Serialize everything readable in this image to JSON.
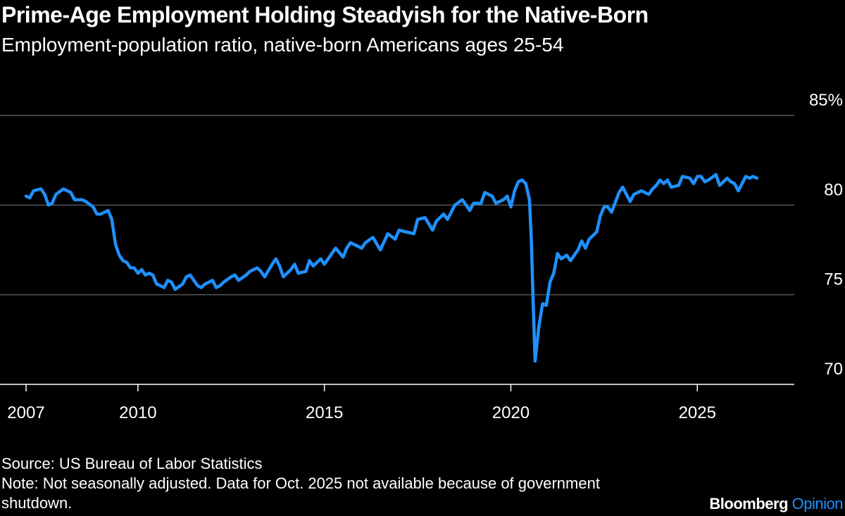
{
  "header": {
    "title": "Prime-Age Employment Holding Steadyish for the Native-Born",
    "subtitle": "Employment-population ratio, native-born Americans ages 25-54"
  },
  "footer": {
    "source": "Source: US Bureau of Labor Statistics",
    "note": "Note: Not seasonally adjusted. Data for Oct. 2025 not available because of government shutdown.",
    "brand_main": "Bloomberg",
    "brand_accent": "Opinion"
  },
  "colors": {
    "background": "#000000",
    "line": "#1e90ff",
    "grid": "#555555",
    "text": "#ffffff"
  },
  "chart_data": {
    "type": "line",
    "title": "Prime-Age Employment Holding Steadyish for the Native-Born",
    "subtitle": "Employment-population ratio, native-born Americans ages 25-54",
    "xlabel": "",
    "ylabel": "",
    "xlim": [
      2007.0,
      2026.6
    ],
    "ylim": [
      70,
      85
    ],
    "y_ticks": [
      70,
      75,
      80,
      85
    ],
    "y_tick_labels": [
      "70",
      "75",
      "80",
      "85%"
    ],
    "x_ticks": [
      2007,
      2010,
      2015,
      2020,
      2025
    ],
    "x_tick_labels": [
      "2007",
      "2010",
      "2015",
      "2020",
      "2025"
    ],
    "grid": true,
    "series": [
      {
        "name": "Employment-population ratio",
        "points": [
          [
            2007.0,
            80.5
          ],
          [
            2007.1,
            80.4
          ],
          [
            2007.2,
            80.8
          ],
          [
            2007.4,
            80.9
          ],
          [
            2007.5,
            80.6
          ],
          [
            2007.6,
            80.0
          ],
          [
            2007.7,
            80.1
          ],
          [
            2007.8,
            80.6
          ],
          [
            2008.0,
            80.9
          ],
          [
            2008.2,
            80.7
          ],
          [
            2008.3,
            80.3
          ],
          [
            2008.5,
            80.3
          ],
          [
            2008.6,
            80.2
          ],
          [
            2008.8,
            79.9
          ],
          [
            2008.9,
            79.5
          ],
          [
            2009.0,
            79.5
          ],
          [
            2009.2,
            79.7
          ],
          [
            2009.3,
            79.2
          ],
          [
            2009.4,
            77.8
          ],
          [
            2009.5,
            77.2
          ],
          [
            2009.6,
            76.9
          ],
          [
            2009.7,
            76.8
          ],
          [
            2009.8,
            76.5
          ],
          [
            2009.9,
            76.5
          ],
          [
            2010.0,
            76.2
          ],
          [
            2010.1,
            76.4
          ],
          [
            2010.2,
            76.1
          ],
          [
            2010.3,
            76.2
          ],
          [
            2010.4,
            76.1
          ],
          [
            2010.5,
            75.6
          ],
          [
            2010.6,
            75.5
          ],
          [
            2010.7,
            75.4
          ],
          [
            2010.8,
            75.8
          ],
          [
            2010.9,
            75.7
          ],
          [
            2011.0,
            75.3
          ],
          [
            2011.2,
            75.6
          ],
          [
            2011.3,
            76.0
          ],
          [
            2011.4,
            76.1
          ],
          [
            2011.5,
            75.8
          ],
          [
            2011.6,
            75.5
          ],
          [
            2011.7,
            75.4
          ],
          [
            2011.8,
            75.6
          ],
          [
            2012.0,
            75.8
          ],
          [
            2012.1,
            75.4
          ],
          [
            2012.2,
            75.5
          ],
          [
            2012.3,
            75.7
          ],
          [
            2012.5,
            76.0
          ],
          [
            2012.6,
            76.1
          ],
          [
            2012.7,
            75.8
          ],
          [
            2012.9,
            76.1
          ],
          [
            2013.0,
            76.3
          ],
          [
            2013.2,
            76.5
          ],
          [
            2013.3,
            76.3
          ],
          [
            2013.4,
            76.0
          ],
          [
            2013.6,
            76.7
          ],
          [
            2013.7,
            77.0
          ],
          [
            2013.8,
            76.6
          ],
          [
            2013.9,
            76.0
          ],
          [
            2014.1,
            76.4
          ],
          [
            2014.2,
            76.7
          ],
          [
            2014.3,
            76.2
          ],
          [
            2014.5,
            76.3
          ],
          [
            2014.6,
            76.9
          ],
          [
            2014.7,
            76.6
          ],
          [
            2014.9,
            77.0
          ],
          [
            2015.0,
            76.7
          ],
          [
            2015.2,
            77.3
          ],
          [
            2015.3,
            77.6
          ],
          [
            2015.5,
            77.1
          ],
          [
            2015.6,
            77.6
          ],
          [
            2015.7,
            77.9
          ],
          [
            2016.0,
            77.6
          ],
          [
            2016.1,
            77.9
          ],
          [
            2016.3,
            78.2
          ],
          [
            2016.5,
            77.5
          ],
          [
            2016.7,
            78.4
          ],
          [
            2016.9,
            78.1
          ],
          [
            2017.0,
            78.6
          ],
          [
            2017.2,
            78.5
          ],
          [
            2017.4,
            78.4
          ],
          [
            2017.5,
            79.2
          ],
          [
            2017.7,
            79.3
          ],
          [
            2017.9,
            78.6
          ],
          [
            2018.0,
            79.1
          ],
          [
            2018.2,
            79.5
          ],
          [
            2018.3,
            79.2
          ],
          [
            2018.5,
            80.0
          ],
          [
            2018.7,
            80.3
          ],
          [
            2018.9,
            79.7
          ],
          [
            2019.0,
            80.1
          ],
          [
            2019.2,
            80.1
          ],
          [
            2019.3,
            80.7
          ],
          [
            2019.5,
            80.5
          ],
          [
            2019.6,
            80.1
          ],
          [
            2019.8,
            80.3
          ],
          [
            2019.9,
            80.5
          ],
          [
            2020.0,
            79.9
          ],
          [
            2020.1,
            80.8
          ],
          [
            2020.2,
            81.3
          ],
          [
            2020.3,
            81.4
          ],
          [
            2020.4,
            81.2
          ],
          [
            2020.5,
            80.3
          ],
          [
            2020.55,
            78.0
          ],
          [
            2020.6,
            74.5
          ],
          [
            2020.65,
            71.3
          ],
          [
            2020.75,
            73.2
          ],
          [
            2020.85,
            74.5
          ],
          [
            2020.95,
            74.4
          ],
          [
            2021.05,
            75.7
          ],
          [
            2021.15,
            76.2
          ],
          [
            2021.25,
            77.3
          ],
          [
            2021.35,
            77.0
          ],
          [
            2021.5,
            77.2
          ],
          [
            2021.6,
            76.9
          ],
          [
            2021.8,
            77.5
          ],
          [
            2021.9,
            78.0
          ],
          [
            2022.0,
            77.6
          ],
          [
            2022.1,
            78.1
          ],
          [
            2022.3,
            78.5
          ],
          [
            2022.4,
            79.4
          ],
          [
            2022.5,
            79.9
          ],
          [
            2022.6,
            79.9
          ],
          [
            2022.7,
            79.6
          ],
          [
            2022.9,
            80.7
          ],
          [
            2023.0,
            81.0
          ],
          [
            2023.1,
            80.6
          ],
          [
            2023.2,
            80.2
          ],
          [
            2023.3,
            80.6
          ],
          [
            2023.5,
            80.8
          ],
          [
            2023.7,
            80.6
          ],
          [
            2023.8,
            80.9
          ],
          [
            2023.9,
            81.1
          ],
          [
            2024.0,
            81.4
          ],
          [
            2024.1,
            81.2
          ],
          [
            2024.2,
            81.4
          ],
          [
            2024.3,
            81.0
          ],
          [
            2024.5,
            81.1
          ],
          [
            2024.6,
            81.6
          ],
          [
            2024.8,
            81.5
          ],
          [
            2024.9,
            81.2
          ],
          [
            2025.0,
            81.6
          ],
          [
            2025.1,
            81.6
          ],
          [
            2025.2,
            81.3
          ],
          [
            2025.3,
            81.4
          ],
          [
            2025.5,
            81.7
          ],
          [
            2025.6,
            81.1
          ],
          [
            2025.7,
            81.3
          ],
          [
            2025.8,
            81.5
          ],
          [
            2025.9,
            81.3
          ],
          [
            2026.0,
            81.2
          ],
          [
            2026.1,
            80.8
          ],
          [
            2026.2,
            81.2
          ],
          [
            2026.3,
            81.6
          ],
          [
            2026.4,
            81.5
          ],
          [
            2026.5,
            81.6
          ],
          [
            2026.6,
            81.5
          ]
        ]
      }
    ]
  }
}
